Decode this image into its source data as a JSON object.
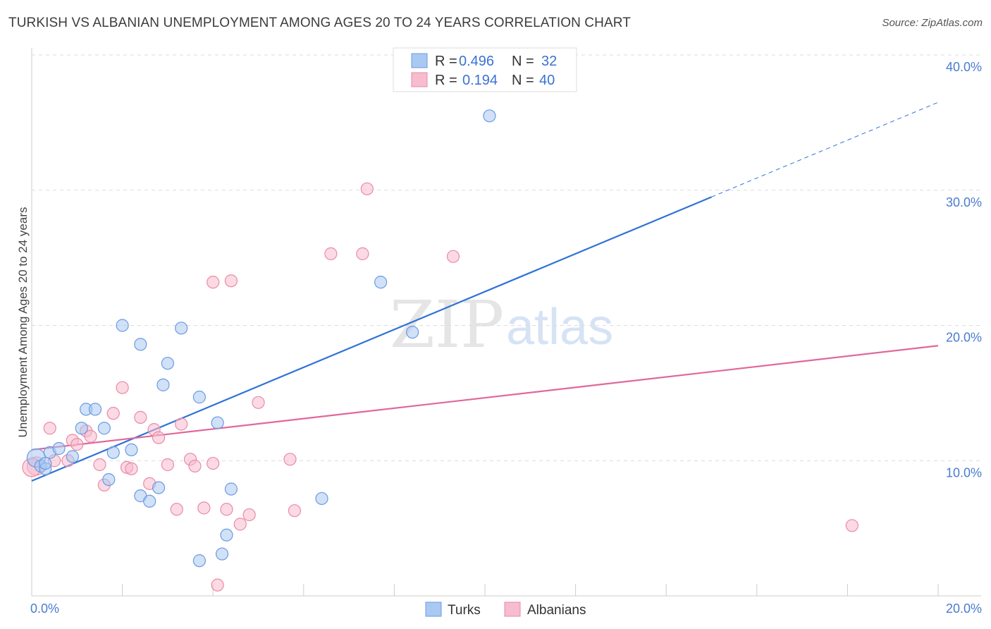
{
  "header": {
    "title": "TURKISH VS ALBANIAN UNEMPLOYMENT AMONG AGES 20 TO 24 YEARS CORRELATION CHART",
    "source": "Source: ZipAtlas.com"
  },
  "watermark": {
    "zip": "ZIP",
    "atlas": "atlas"
  },
  "legend": {
    "r_label": "R =",
    "n_label": "N =",
    "turks": {
      "r": "0.496",
      "n": "32"
    },
    "albanians": {
      "r": "0.194",
      "n": "40"
    }
  },
  "colors": {
    "turks_fill": "#a9c9f3",
    "turks_stroke": "#6b9be0",
    "turks_line": "#2f72d6",
    "albanians_fill": "#f7bccd",
    "albanians_stroke": "#e98aa8",
    "albanians_line": "#e0689a"
  },
  "chart_data": {
    "type": "scatter",
    "title": "TURKISH VS ALBANIAN UNEMPLOYMENT AMONG AGES 20 TO 24 YEARS CORRELATION CHART",
    "xlabel": "",
    "ylabel": "Unemployment Among Ages 20 to 24 years",
    "xlim": [
      0,
      20
    ],
    "ylim": [
      0,
      40
    ],
    "x_tick_labels": [
      "0.0%",
      "20.0%"
    ],
    "y_ticks": [
      10,
      20,
      30,
      40
    ],
    "y_tick_labels": [
      "10.0%",
      "20.0%",
      "30.0%",
      "40.0%"
    ],
    "grid": true,
    "legend_position": "top-center",
    "series": [
      {
        "name": "Turks",
        "r": 0.496,
        "n": 32,
        "trend": {
          "x0": 0,
          "y0": 8.5,
          "x1": 20,
          "y1": 36.5,
          "solid_until_x": 15
        },
        "points": [
          [
            0.1,
            10.2
          ],
          [
            0.2,
            9.6
          ],
          [
            0.3,
            9.4
          ],
          [
            0.4,
            10.6
          ],
          [
            0.6,
            10.9
          ],
          [
            0.9,
            10.3
          ],
          [
            1.1,
            12.4
          ],
          [
            1.2,
            13.8
          ],
          [
            1.4,
            13.8
          ],
          [
            1.6,
            12.4
          ],
          [
            1.7,
            8.6
          ],
          [
            1.8,
            10.6
          ],
          [
            2.0,
            20.0
          ],
          [
            2.2,
            10.8
          ],
          [
            2.4,
            18.6
          ],
          [
            2.4,
            7.4
          ],
          [
            2.6,
            7.0
          ],
          [
            2.8,
            8.0
          ],
          [
            2.9,
            15.6
          ],
          [
            3.0,
            17.2
          ],
          [
            3.3,
            19.8
          ],
          [
            3.7,
            2.6
          ],
          [
            3.7,
            14.7
          ],
          [
            4.1,
            12.8
          ],
          [
            4.2,
            3.1
          ],
          [
            4.3,
            4.5
          ],
          [
            4.4,
            7.9
          ],
          [
            6.4,
            7.2
          ],
          [
            7.7,
            23.2
          ],
          [
            8.4,
            19.5
          ],
          [
            10.1,
            35.5
          ],
          [
            0.3,
            9.8
          ]
        ]
      },
      {
        "name": "Albanians",
        "r": 0.194,
        "n": 40,
        "trend": {
          "x0": 0,
          "y0": 10.8,
          "x1": 20,
          "y1": 18.5
        },
        "points": [
          [
            0.1,
            9.6
          ],
          [
            0.4,
            12.4
          ],
          [
            0.5,
            10.0
          ],
          [
            0.8,
            10.0
          ],
          [
            0.9,
            11.5
          ],
          [
            1.0,
            11.2
          ],
          [
            1.2,
            12.2
          ],
          [
            1.3,
            11.8
          ],
          [
            1.5,
            9.7
          ],
          [
            1.6,
            8.2
          ],
          [
            1.8,
            13.5
          ],
          [
            2.0,
            15.4
          ],
          [
            2.1,
            9.5
          ],
          [
            2.2,
            9.4
          ],
          [
            2.4,
            13.2
          ],
          [
            2.6,
            8.3
          ],
          [
            2.7,
            12.3
          ],
          [
            2.8,
            11.7
          ],
          [
            3.0,
            9.7
          ],
          [
            3.2,
            6.4
          ],
          [
            3.3,
            12.7
          ],
          [
            3.5,
            10.1
          ],
          [
            3.6,
            9.6
          ],
          [
            3.8,
            6.5
          ],
          [
            4.0,
            23.2
          ],
          [
            4.0,
            9.8
          ],
          [
            4.1,
            0.8
          ],
          [
            4.3,
            6.4
          ],
          [
            4.4,
            23.3
          ],
          [
            4.6,
            5.3
          ],
          [
            4.8,
            6.0
          ],
          [
            5.0,
            14.3
          ],
          [
            5.7,
            10.1
          ],
          [
            5.8,
            6.3
          ],
          [
            6.6,
            25.3
          ],
          [
            7.3,
            25.3
          ],
          [
            7.4,
            30.1
          ],
          [
            9.3,
            25.1
          ],
          [
            18.1,
            5.2
          ],
          [
            0.0,
            9.5
          ]
        ]
      }
    ]
  },
  "bottom_legend": {
    "turks": "Turks",
    "albanians": "Albanians"
  }
}
